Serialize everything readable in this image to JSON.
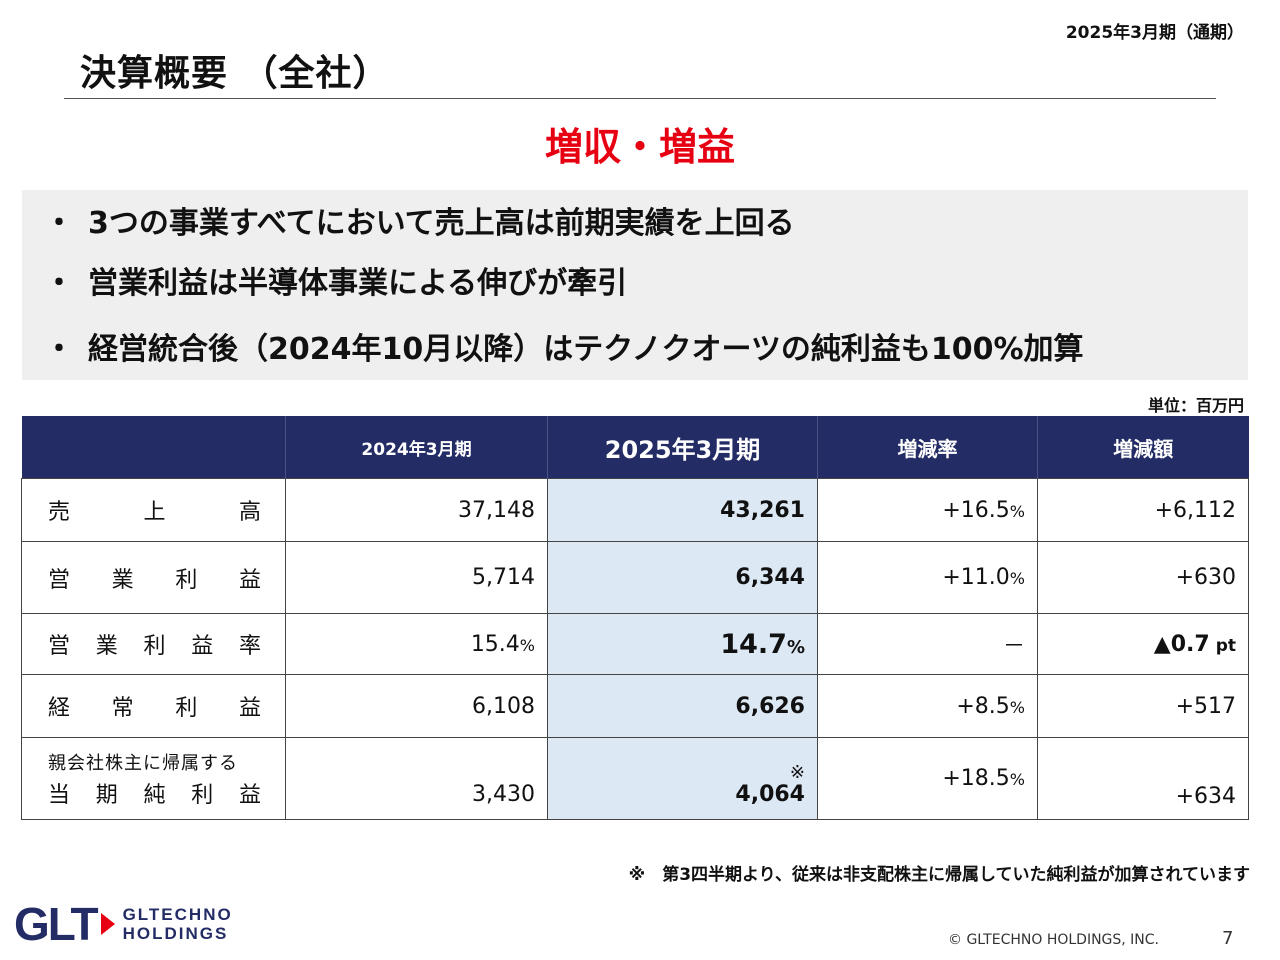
{
  "header": {
    "period_tag": "2025年3月期（通期）",
    "title": "決算概要 （全社）"
  },
  "headline": "増収・増益",
  "points": [
    {
      "bullet": "・",
      "text": "3つの事業すべてにおいて売上高は前期実績を上回る"
    },
    {
      "bullet": "・",
      "text": "営業利益は半導体事業による伸びが牽引"
    },
    {
      "bullet": "・",
      "text": "経営統合後（2024年10月以降）はテクノクオーツの純利益も100%加算"
    }
  ],
  "unit_note": "単位：百万円",
  "table": {
    "headers": {
      "prev": "2024年3月期",
      "cur": "2025年3月期",
      "rate": "増減率",
      "diff": "増減額"
    },
    "rows": {
      "sales": {
        "label_chars": [
          "売",
          "上",
          "高"
        ],
        "prev": "37,148",
        "cur": "43,261",
        "rate": "+16.5",
        "rate_unit": "%",
        "diff": "+6,112"
      },
      "op_income": {
        "label_chars": [
          "営",
          "業",
          "利",
          "益"
        ],
        "prev": "5,714",
        "cur": "6,344",
        "rate": "+11.0",
        "rate_unit": "%",
        "diff": "+630"
      },
      "op_margin": {
        "label_chars": [
          "営",
          "業",
          "利",
          "益",
          "率"
        ],
        "prev": "15.4",
        "prev_unit": "%",
        "cur": "14.7",
        "cur_unit": "%",
        "rate": "－",
        "diff_mark": "▲",
        "diff": "0.7",
        "diff_unit": "pt"
      },
      "ordinary": {
        "label_chars": [
          "経",
          "常",
          "利",
          "益"
        ],
        "prev": "6,108",
        "cur": "6,626",
        "rate": "+8.5",
        "rate_unit": "%",
        "diff": "+517"
      },
      "net": {
        "label_top": "親会社株主に帰属する",
        "label_chars": [
          "当",
          "期",
          "純",
          "利",
          "益"
        ],
        "prev": "3,430",
        "cur_mark": "※",
        "cur": "4,064",
        "rate": "+18.5",
        "rate_unit": "%",
        "diff": "+634"
      }
    }
  },
  "footnote": "※　第3四半期より、従来は非支配株主に帰属していた純利益が加算されています",
  "footer": {
    "logo_mark": "GLT",
    "logo_line1": "GLTECHNO",
    "logo_line2": "HOLDINGS",
    "copyright": "© GLTECHNO HOLDINGS, INC.",
    "page_number": "7"
  },
  "colors": {
    "accent_red": "#e60012",
    "header_navy": "#232c65",
    "highlight_blue": "#dce8f4",
    "panel_gray": "#efefef"
  }
}
